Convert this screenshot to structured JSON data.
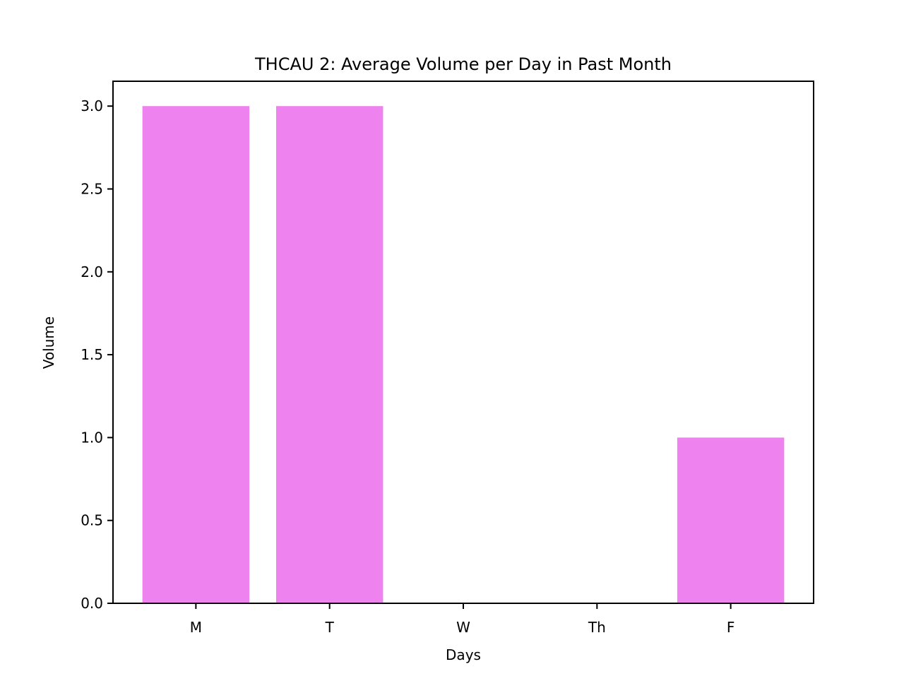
{
  "chart_data": {
    "type": "bar",
    "title": "THCAU 2: Average Volume per Day in Past Month",
    "xlabel": "Days",
    "ylabel": "Volume",
    "categories": [
      "M",
      "T",
      "W",
      "Th",
      "F"
    ],
    "values": [
      3,
      3,
      0,
      0,
      1
    ],
    "ylim": [
      0,
      3.15
    ],
    "yticks": [
      0.0,
      0.5,
      1.0,
      1.5,
      2.0,
      2.5,
      3.0
    ],
    "ytick_labels": [
      "0.0",
      "0.5",
      "1.0",
      "1.5",
      "2.0",
      "2.5",
      "3.0"
    ],
    "bar_color": "#ee82ee",
    "grid": false,
    "legend": "none"
  }
}
